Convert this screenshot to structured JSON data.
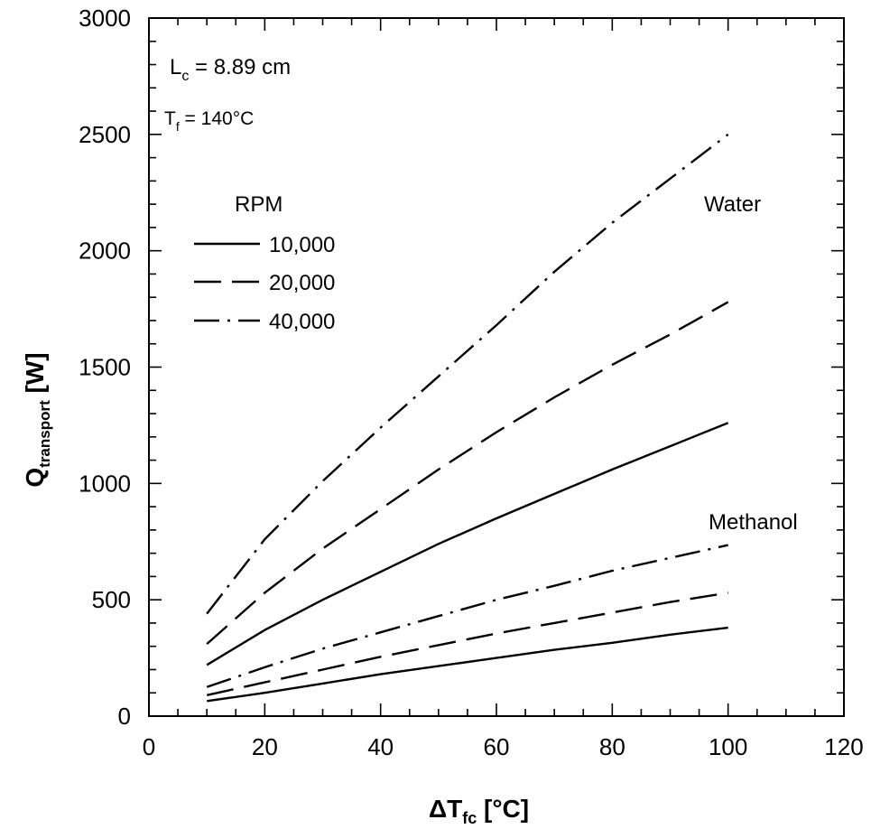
{
  "chart_data": {
    "type": "line",
    "title": "",
    "xlabel": {
      "main": "ΔT",
      "sub": "fc",
      "unit": " [°C]"
    },
    "ylabel": {
      "main": "Q",
      "sub": "transport",
      "unit": "  [W]"
    },
    "xlim": [
      0,
      120
    ],
    "ylim": [
      0,
      3000
    ],
    "x_ticks": [
      "0",
      "20",
      "40",
      "60",
      "80",
      "100",
      "120"
    ],
    "y_ticks": [
      "0",
      "500",
      "1000",
      "1500",
      "2000",
      "2500",
      "3000"
    ],
    "grid": false,
    "annotations": {
      "lc": {
        "main": "L",
        "sub": "c",
        "rest": " = 8.89 cm"
      },
      "tf": {
        "main": "T",
        "sub": "f",
        "rest": " = 140°C"
      },
      "water": "Water",
      "methanol": "Methanol"
    },
    "legend": {
      "title": "RPM",
      "placement": "upper-left",
      "entries": [
        {
          "label": "10,000",
          "style": "solid"
        },
        {
          "label": "20,000",
          "style": "dash"
        },
        {
          "label": "40,000",
          "style": "dashdot"
        }
      ]
    },
    "x": [
      10,
      20,
      30,
      40,
      50,
      60,
      70,
      80,
      90,
      100
    ],
    "series": [
      {
        "name": "10,000",
        "fluid": "Water",
        "style": "solid",
        "values": [
          220,
          370,
          500,
          620,
          740,
          850,
          955,
          1060,
          1160,
          1260
        ]
      },
      {
        "name": "20,000",
        "fluid": "Water",
        "style": "dash",
        "values": [
          310,
          530,
          720,
          890,
          1060,
          1220,
          1370,
          1510,
          1640,
          1780
        ]
      },
      {
        "name": "40,000",
        "fluid": "Water",
        "style": "dashdot",
        "values": [
          440,
          760,
          1010,
          1240,
          1460,
          1680,
          1910,
          2120,
          2310,
          2500
        ]
      },
      {
        "name": "10,000",
        "fluid": "Methanol",
        "style": "solid",
        "values": [
          65,
          100,
          140,
          180,
          215,
          250,
          285,
          315,
          350,
          380
        ]
      },
      {
        "name": "20,000",
        "fluid": "Methanol",
        "style": "dash",
        "values": [
          90,
          145,
          200,
          255,
          305,
          355,
          400,
          445,
          490,
          530
        ]
      },
      {
        "name": "40,000",
        "fluid": "Methanol",
        "style": "dashdot",
        "values": [
          125,
          210,
          290,
          360,
          430,
          500,
          560,
          625,
          680,
          735
        ]
      }
    ]
  }
}
